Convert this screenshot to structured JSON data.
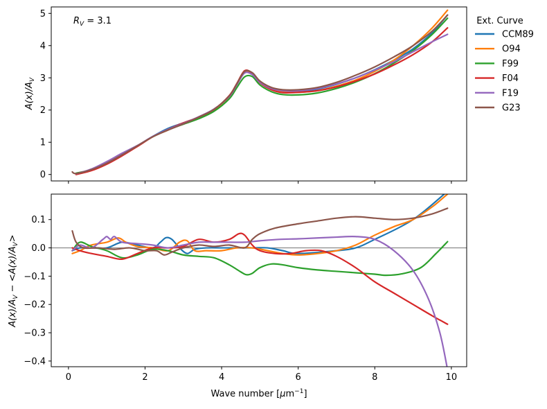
{
  "legend": {
    "title": "Ext. Curve",
    "placement": "outside-right-top"
  },
  "chart_data": [
    {
      "type": "line",
      "panel": "top",
      "annotation": "R_V = 3.1",
      "annotation_parts": {
        "var": "R",
        "sub": "V",
        "rest": " = 3.1"
      },
      "xlabel": "",
      "ylabel": "A(x)/A_V",
      "ylabel_parts": {
        "a": "A(x)/A",
        "sub": "V"
      },
      "xlim": [
        -0.45,
        10.4
      ],
      "ylim": [
        -0.2,
        5.2
      ],
      "xticks": [
        0,
        2,
        4,
        6,
        8,
        10
      ],
      "yticks": [
        0,
        1,
        2,
        3,
        4,
        5
      ],
      "show_xtick_labels": false,
      "series": [
        {
          "name": "CCM89",
          "color": "#1f77b4",
          "x": [
            0.2,
            0.6,
            1.0,
            1.4,
            1.8,
            2.2,
            2.6,
            3.0,
            3.4,
            3.8,
            4.2,
            4.4,
            4.6,
            4.8,
            5.0,
            5.3,
            5.6,
            6.0,
            6.5,
            7.0,
            7.5,
            8.0,
            8.5,
            9.0,
            9.5,
            9.9
          ],
          "y": [
            0.02,
            0.15,
            0.36,
            0.62,
            0.88,
            1.18,
            1.43,
            1.6,
            1.78,
            2.02,
            2.42,
            2.8,
            3.17,
            3.12,
            2.85,
            2.65,
            2.58,
            2.58,
            2.65,
            2.8,
            3.0,
            3.25,
            3.55,
            3.9,
            4.4,
            4.95
          ]
        },
        {
          "name": "O94",
          "color": "#ff7f0e",
          "x": [
            0.2,
            0.6,
            1.0,
            1.4,
            1.8,
            2.2,
            2.6,
            3.0,
            3.4,
            3.8,
            4.2,
            4.4,
            4.6,
            4.8,
            5.0,
            5.3,
            5.6,
            6.0,
            6.5,
            7.0,
            7.5,
            8.0,
            8.5,
            9.0,
            9.5,
            9.9
          ],
          "y": [
            0.0,
            0.14,
            0.35,
            0.64,
            0.88,
            1.17,
            1.38,
            1.59,
            1.77,
            2.0,
            2.42,
            2.8,
            3.18,
            3.12,
            2.85,
            2.65,
            2.56,
            2.55,
            2.6,
            2.74,
            2.93,
            3.2,
            3.55,
            4.0,
            4.55,
            5.1
          ]
        },
        {
          "name": "F99",
          "color": "#2ca02c",
          "x": [
            0.2,
            0.6,
            1.0,
            1.4,
            1.8,
            2.2,
            2.6,
            3.0,
            3.4,
            3.8,
            4.2,
            4.4,
            4.6,
            4.8,
            5.0,
            5.3,
            5.6,
            6.0,
            6.5,
            7.0,
            7.5,
            8.0,
            8.5,
            9.0,
            9.5,
            9.9
          ],
          "y": [
            0.04,
            0.15,
            0.34,
            0.6,
            0.88,
            1.17,
            1.39,
            1.56,
            1.73,
            1.96,
            2.35,
            2.7,
            3.03,
            3.04,
            2.78,
            2.57,
            2.48,
            2.47,
            2.53,
            2.67,
            2.87,
            3.13,
            3.46,
            3.85,
            4.35,
            4.85
          ]
        },
        {
          "name": "F04",
          "color": "#d62728",
          "x": [
            0.2,
            0.6,
            1.0,
            1.4,
            1.8,
            2.2,
            2.6,
            3.0,
            3.4,
            3.8,
            4.2,
            4.4,
            4.6,
            4.8,
            5.0,
            5.3,
            5.6,
            6.0,
            6.5,
            7.0,
            7.5,
            8.0,
            8.5,
            9.0,
            9.5,
            9.9
          ],
          "y": [
            0.0,
            0.12,
            0.32,
            0.58,
            0.87,
            1.17,
            1.4,
            1.6,
            1.78,
            2.02,
            2.45,
            2.83,
            3.22,
            3.14,
            2.85,
            2.63,
            2.54,
            2.55,
            2.6,
            2.72,
            2.9,
            3.12,
            3.4,
            3.72,
            4.12,
            4.55
          ]
        },
        {
          "name": "F19",
          "color": "#9467bd",
          "x": [
            0.2,
            0.6,
            1.0,
            1.4,
            1.8,
            2.2,
            2.6,
            3.0,
            3.4,
            3.8,
            4.2,
            4.4,
            4.6,
            4.8,
            5.0,
            5.3,
            5.6,
            6.0,
            6.5,
            7.0,
            7.5,
            8.0,
            8.5,
            9.0,
            9.5,
            9.9
          ],
          "y": [
            0.02,
            0.17,
            0.4,
            0.66,
            0.9,
            1.18,
            1.4,
            1.58,
            1.79,
            2.03,
            2.42,
            2.79,
            3.15,
            3.1,
            2.86,
            2.67,
            2.6,
            2.6,
            2.67,
            2.81,
            3.0,
            3.24,
            3.5,
            3.81,
            4.12,
            4.35
          ]
        },
        {
          "name": "G23",
          "color": "#8c564b",
          "x": [
            0.1,
            0.2,
            0.6,
            1.0,
            1.4,
            1.8,
            2.2,
            2.6,
            3.0,
            3.4,
            3.8,
            4.2,
            4.4,
            4.6,
            4.8,
            5.0,
            5.3,
            5.6,
            6.0,
            6.5,
            7.0,
            7.5,
            8.0,
            8.5,
            9.0,
            9.5,
            9.9
          ],
          "y": [
            0.08,
            0.03,
            0.15,
            0.35,
            0.61,
            0.89,
            1.17,
            1.38,
            1.57,
            1.78,
            2.02,
            2.44,
            2.82,
            3.2,
            3.16,
            2.9,
            2.7,
            2.63,
            2.63,
            2.7,
            2.86,
            3.08,
            3.34,
            3.65,
            4.0,
            4.45,
            4.95
          ]
        }
      ]
    },
    {
      "type": "line",
      "panel": "bottom",
      "xlabel": "Wave number [μm⁻¹]",
      "xlabel_parts": {
        "a": "Wave number [",
        "mu": "μ",
        "b": "m",
        "sup": "−1",
        "c": "]"
      },
      "ylabel": "A(x)/A_V − <A(x)/A_V>",
      "ylabel_parts": {
        "a": "A(x)/A",
        "sub1": "V",
        "b": " − <A(x)/A",
        "sub2": "V",
        "c": ">"
      },
      "xlim": [
        -0.45,
        10.4
      ],
      "ylim": [
        -0.42,
        0.19
      ],
      "xticks": [
        0,
        2,
        4,
        6,
        8,
        10
      ],
      "xtick_labels": [
        "0",
        "2",
        "4",
        "6",
        "8",
        "10"
      ],
      "yticks": [
        -0.4,
        -0.3,
        -0.2,
        -0.1,
        0.0,
        0.1
      ],
      "ytick_labels": [
        "−0.4",
        "−0.3",
        "−0.2",
        "−0.1",
        "0.0",
        "0.1"
      ],
      "reference_line": 0.0,
      "series": [
        {
          "name": "CCM89",
          "color": "#1f77b4",
          "x": [
            0.1,
            0.3,
            0.6,
            1.0,
            1.4,
            1.8,
            2.2,
            2.4,
            2.55,
            2.7,
            2.9,
            3.1,
            3.3,
            3.6,
            4.0,
            4.4,
            4.8,
            5.2,
            5.6,
            6.0,
            7.0,
            7.5,
            8.0,
            9.0,
            9.9
          ],
          "y": [
            -0.01,
            0.0,
            0.0,
            0.0,
            0.02,
            0.01,
            0.0,
            0.02,
            0.036,
            0.03,
            0.0,
            -0.02,
            -0.005,
            0.0,
            0.0,
            0.0,
            0.0,
            0.0,
            -0.01,
            -0.02,
            -0.01,
            0.0,
            0.03,
            0.1,
            0.2
          ]
        },
        {
          "name": "O94",
          "color": "#ff7f0e",
          "x": [
            0.1,
            0.3,
            0.6,
            1.0,
            1.3,
            1.5,
            1.8,
            2.2,
            2.6,
            2.9,
            3.1,
            3.3,
            3.6,
            4.0,
            4.4,
            4.8,
            5.2,
            5.6,
            6.0,
            6.5,
            7.0,
            7.5,
            8.0,
            8.5,
            9.0,
            9.5,
            9.9
          ],
          "y": [
            -0.02,
            -0.01,
            0.01,
            0.02,
            0.035,
            0.02,
            0.005,
            0.0,
            -0.01,
            0.02,
            0.025,
            -0.01,
            -0.01,
            -0.01,
            0.0,
            0.0,
            -0.01,
            -0.02,
            -0.025,
            -0.02,
            -0.01,
            0.01,
            0.045,
            0.075,
            0.1,
            0.145,
            0.19
          ]
        },
        {
          "name": "F99",
          "color": "#2ca02c",
          "x": [
            0.1,
            0.3,
            0.6,
            1.0,
            1.4,
            1.8,
            2.2,
            2.6,
            3.0,
            3.4,
            3.8,
            4.2,
            4.5,
            4.65,
            4.8,
            5.0,
            5.3,
            5.6,
            6.0,
            6.5,
            7.0,
            7.5,
            8.0,
            8.3,
            8.7,
            9.2,
            9.6,
            9.9
          ],
          "y": [
            -0.01,
            0.02,
            0.005,
            -0.01,
            -0.035,
            -0.025,
            -0.005,
            -0.01,
            -0.025,
            -0.03,
            -0.035,
            -0.06,
            -0.085,
            -0.095,
            -0.09,
            -0.07,
            -0.057,
            -0.06,
            -0.07,
            -0.078,
            -0.083,
            -0.088,
            -0.093,
            -0.097,
            -0.092,
            -0.07,
            -0.02,
            0.022
          ]
        },
        {
          "name": "F04",
          "color": "#d62728",
          "x": [
            0.1,
            0.3,
            0.6,
            1.0,
            1.4,
            1.8,
            2.2,
            2.6,
            3.0,
            3.4,
            3.8,
            4.2,
            4.45,
            4.6,
            4.8,
            5.0,
            5.4,
            5.8,
            6.2,
            6.6,
            7.0,
            7.5,
            8.0,
            8.5,
            9.0,
            9.5,
            9.9
          ],
          "y": [
            0.0,
            -0.01,
            -0.02,
            -0.03,
            -0.04,
            -0.02,
            0.0,
            0.0,
            0.005,
            0.03,
            0.02,
            0.03,
            0.05,
            0.045,
            0.01,
            -0.01,
            -0.02,
            -0.02,
            -0.01,
            -0.01,
            -0.03,
            -0.07,
            -0.12,
            -0.16,
            -0.2,
            -0.24,
            -0.27
          ]
        },
        {
          "name": "F19",
          "color": "#9467bd",
          "x": [
            0.1,
            0.3,
            0.6,
            0.9,
            1.0,
            1.1,
            1.2,
            1.4,
            1.8,
            2.2,
            2.6,
            3.0,
            3.4,
            3.8,
            4.2,
            4.6,
            5.0,
            5.5,
            6.0,
            6.5,
            7.0,
            7.5,
            8.0,
            8.5,
            9.0,
            9.4,
            9.7,
            9.9
          ],
          "y": [
            -0.01,
            0.01,
            0.0,
            0.03,
            0.04,
            0.03,
            0.04,
            0.02,
            0.015,
            0.01,
            0.0,
            0.01,
            0.02,
            0.02,
            0.02,
            0.02,
            0.025,
            0.03,
            0.032,
            0.035,
            0.038,
            0.04,
            0.03,
            -0.01,
            -0.08,
            -0.18,
            -0.3,
            -0.43
          ]
        },
        {
          "name": "G23",
          "color": "#8c564b",
          "x": [
            0.1,
            0.2,
            0.4,
            0.8,
            1.2,
            1.6,
            2.0,
            2.3,
            2.5,
            2.7,
            3.0,
            3.4,
            3.8,
            4.2,
            4.6,
            4.8,
            5.0,
            5.4,
            6.0,
            6.5,
            7.0,
            7.5,
            8.0,
            8.5,
            9.0,
            9.5,
            9.9
          ],
          "y": [
            0.06,
            0.02,
            0.0,
            0.0,
            -0.005,
            0.0,
            -0.01,
            -0.01,
            -0.025,
            -0.015,
            0.0,
            0.01,
            0.005,
            0.01,
            0.0,
            0.03,
            0.05,
            0.07,
            0.085,
            0.095,
            0.105,
            0.11,
            0.105,
            0.1,
            0.105,
            0.12,
            0.14
          ]
        }
      ]
    }
  ]
}
